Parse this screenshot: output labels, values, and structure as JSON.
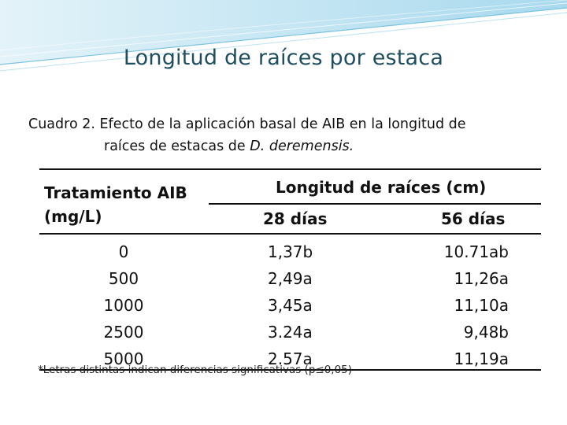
{
  "slide": {
    "title": "Longitud de raíces por estaca"
  },
  "caption": {
    "line1": "Cuadro 2. Efecto de la aplicación basal de AIB en la longitud de",
    "line2_prefix": "raíces  de estacas de  ",
    "line2_species": "D. deremensis."
  },
  "table": {
    "header_treatment": [
      "Tratamiento AIB",
      "(mg/L)"
    ],
    "header_group": "Longitud de raíces (cm)",
    "header_sub": [
      "28 días",
      "56 días"
    ],
    "treatments": [
      "0",
      "500",
      "1000",
      "2500",
      "5000"
    ],
    "day28": [
      "1,37b",
      "2,49a",
      "3,45a",
      "3.24a",
      "2.57a"
    ],
    "day56": [
      "10.71ab",
      "11,26a",
      "11,10a",
      "9,48b",
      "11,19a"
    ]
  },
  "footnote": "*Letras distintas indican diferencias significativas (p≤0,05)",
  "colors": {
    "title": "#1f4e5f",
    "banner": "#9fd4ea"
  }
}
